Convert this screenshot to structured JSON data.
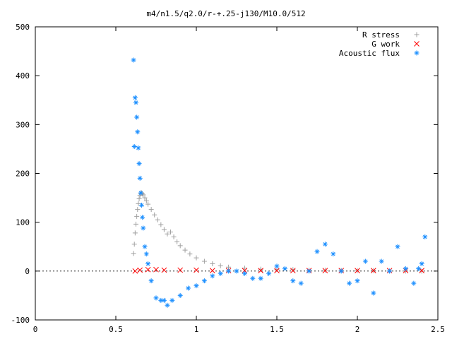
{
  "chart_data": {
    "type": "scatter",
    "title": "m4/n1.5/q2.0/r-+.25-j130/M10.0/512",
    "xlabel": "",
    "ylabel": "",
    "xlim": [
      0,
      2.5
    ],
    "ylim": [
      -100,
      500
    ],
    "xticks": [
      0,
      0.5,
      1,
      1.5,
      2,
      2.5
    ],
    "xtick_labels": [
      "0",
      "0.5",
      "1",
      "1.5",
      "2",
      "2.5"
    ],
    "yticks": [
      -100,
      0,
      100,
      200,
      300,
      400,
      500
    ],
    "ytick_labels": [
      "-100",
      "0",
      "100",
      "200",
      "300",
      "400",
      "500"
    ],
    "legend": "top-right",
    "series": [
      {
        "name": "R stress",
        "marker": "plus",
        "color": "#a0a0a0",
        "x": [
          0.61,
          0.615,
          0.62,
          0.625,
          0.63,
          0.635,
          0.64,
          0.645,
          0.65,
          0.655,
          0.66,
          0.665,
          0.67,
          0.68,
          0.69,
          0.7,
          0.72,
          0.74,
          0.76,
          0.78,
          0.8,
          0.82,
          0.84,
          0.86,
          0.88,
          0.9,
          0.93,
          0.96,
          1.0,
          1.05,
          1.1,
          1.15,
          1.2,
          1.3,
          1.4,
          1.5,
          1.6,
          1.7,
          1.8,
          1.9,
          2.0,
          2.1,
          2.2,
          2.3,
          2.4
        ],
        "y": [
          36,
          55,
          78,
          96,
          112,
          126,
          138,
          148,
          155,
          159,
          160,
          158,
          156,
          150,
          144,
          137,
          126,
          115,
          105,
          95,
          85,
          76,
          80,
          70,
          60,
          52,
          43,
          35,
          27,
          20,
          15,
          11,
          8,
          6,
          4,
          3,
          3,
          2,
          2,
          1,
          1,
          1,
          0,
          0,
          0
        ]
      },
      {
        "name": "G work",
        "marker": "cross",
        "color": "#ff0000",
        "x": [
          0.62,
          0.65,
          0.7,
          0.75,
          0.8,
          0.9,
          1.0,
          1.1,
          1.2,
          1.3,
          1.4,
          1.5,
          1.6,
          1.7,
          1.8,
          1.9,
          2.0,
          2.1,
          2.2,
          2.3,
          2.4
        ],
        "y": [
          0,
          2,
          3,
          3,
          2,
          2,
          2,
          1,
          1,
          1,
          1,
          1,
          1,
          1,
          1,
          1,
          1,
          1,
          1,
          1,
          1
        ]
      },
      {
        "name": "Acoustic flux",
        "marker": "star",
        "color": "#1e90ff",
        "x": [
          0.61,
          0.615,
          0.62,
          0.625,
          0.63,
          0.635,
          0.64,
          0.645,
          0.65,
          0.655,
          0.66,
          0.665,
          0.67,
          0.68,
          0.69,
          0.7,
          0.72,
          0.75,
          0.78,
          0.8,
          0.82,
          0.85,
          0.9,
          0.95,
          1.0,
          1.05,
          1.1,
          1.15,
          1.2,
          1.25,
          1.3,
          1.35,
          1.4,
          1.45,
          1.5,
          1.55,
          1.6,
          1.65,
          1.7,
          1.75,
          1.8,
          1.85,
          1.9,
          1.95,
          2.0,
          2.05,
          2.1,
          2.15,
          2.2,
          2.25,
          2.3,
          2.35,
          2.38,
          2.4,
          2.42
        ],
        "y": [
          432,
          255,
          355,
          345,
          315,
          285,
          252,
          220,
          190,
          160,
          135,
          110,
          88,
          50,
          35,
          15,
          -20,
          -55,
          -60,
          -60,
          -70,
          -60,
          -50,
          -35,
          -30,
          -20,
          -10,
          -5,
          0,
          0,
          -5,
          -15,
          -15,
          -5,
          10,
          5,
          -20,
          -25,
          0,
          40,
          55,
          35,
          0,
          -25,
          -20,
          20,
          -45,
          20,
          0,
          50,
          5,
          -25,
          5,
          15,
          70
        ]
      }
    ]
  }
}
